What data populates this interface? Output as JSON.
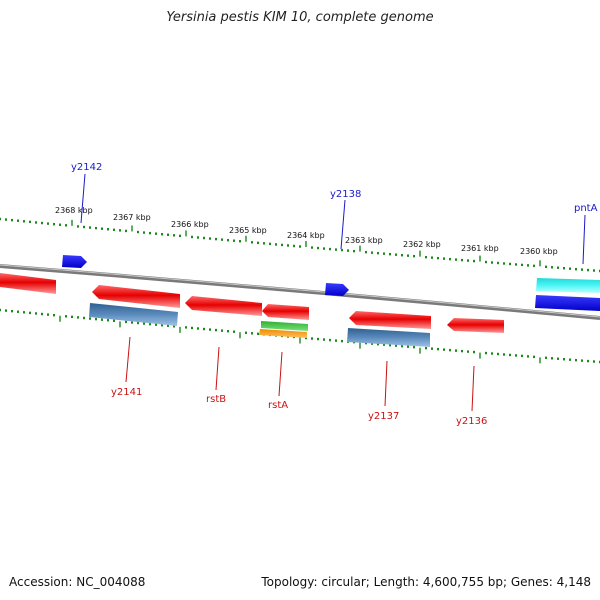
{
  "title": "Yersinia pestis KIM 10, complete genome",
  "accession": "Accession: NC_004088",
  "summary": "Topology: circular; Length: 4,600,755 bp; Genes: 4,148",
  "scale_labels": [
    "2368 kbp",
    "2367 kbp",
    "2366 kbp",
    "2365 kbp",
    "2364 kbp",
    "2363 kbp",
    "2362 kbp",
    "2361 kbp",
    "2360 kbp"
  ],
  "gene_labels_top": [
    "y2142",
    "y2138",
    "pntA"
  ],
  "gene_labels_bottom": [
    "y2141",
    "rstB",
    "rstA",
    "y2137",
    "y2136"
  ],
  "colors": {
    "forward_gene": "#1a1adf",
    "reverse_gene": "#e60000",
    "cds_blue": "#4f7fae",
    "highlight_cyan": "#33f0f0",
    "label_blue": "#1a1acc",
    "label_red": "#cc1111",
    "ticks": "#1a8a1a",
    "backbone": "#808080"
  }
}
